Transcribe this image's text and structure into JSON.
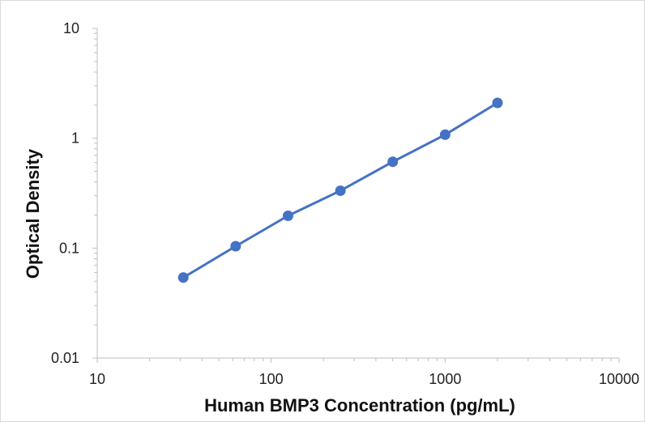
{
  "chart_data": {
    "type": "line",
    "title": "",
    "xlabel": "Human BMP3 Concentration (pg/mL)",
    "ylabel": "Optical Density",
    "x_scale": "log",
    "y_scale": "log",
    "xlim": [
      10,
      10000
    ],
    "ylim": [
      0.01,
      10
    ],
    "x_ticks": [
      "10",
      "100",
      "1000",
      "10000"
    ],
    "y_ticks": [
      "0.01",
      "0.1",
      "1",
      "10"
    ],
    "grid": false,
    "legend": "none",
    "series": [
      {
        "color": "#4472C4",
        "x": [
          31.25,
          62.5,
          125,
          250,
          500,
          1000,
          2000
        ],
        "y": [
          0.054,
          0.104,
          0.197,
          0.333,
          0.611,
          1.077,
          2.099
        ]
      }
    ]
  }
}
